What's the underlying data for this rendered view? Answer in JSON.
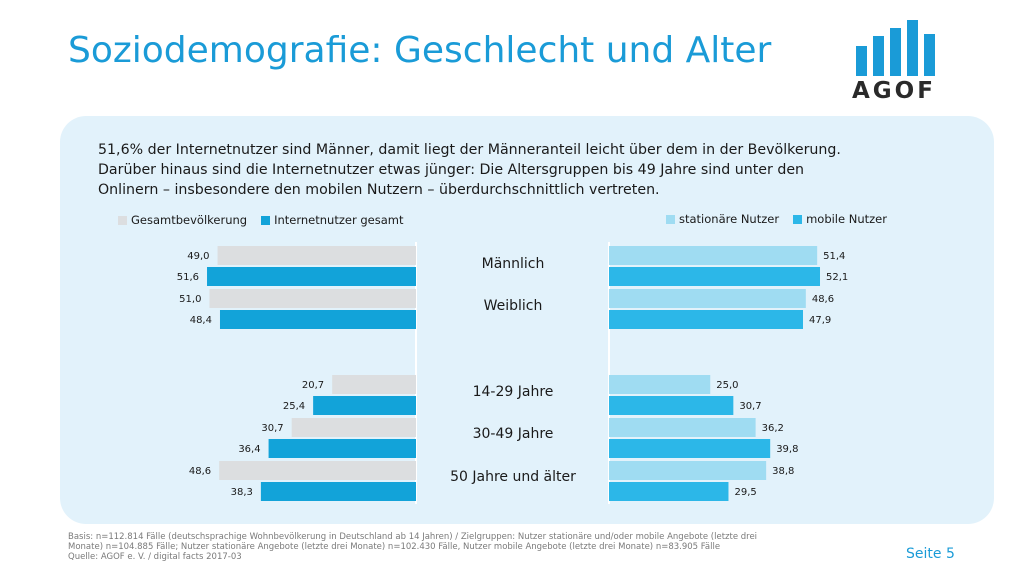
{
  "title": "Soziodemografie: Geschlecht und Alter",
  "logo": {
    "text": "AGOF",
    "color": "#1a9bd7"
  },
  "intro": [
    "51,6% der Internetnutzer sind Männer, damit liegt der Männeranteil leicht über dem in der Bevölkerung.",
    "Darüber hinaus sind die Internetnutzer etwas jünger: Die Altersgruppen bis 49 Jahre sind unter den",
    "Onlinern – insbesondere den mobilen Nutzern – überdurchschnittlich vertreten."
  ],
  "colors": {
    "gesamtbevoelkerung": "#dcdee0",
    "internetnutzer": "#12a3d9",
    "stationaer": "#9fdcf2",
    "mobil": "#2cb7e8",
    "panel": "#e2f2fb"
  },
  "chart_data": {
    "type": "bar",
    "orientation": "horizontal",
    "categories": [
      "Männlich",
      "Weiblich",
      "14-29 Jahre",
      "30-49 Jahre",
      "50 Jahre und älter"
    ],
    "left": {
      "series": [
        {
          "name": "Gesamtbevölkerung",
          "values": [
            49.0,
            51.0,
            20.7,
            30.7,
            48.6
          ],
          "labels": [
            "49,0",
            "51,0",
            "20,7",
            "30,7",
            "48,6"
          ]
        },
        {
          "name": "Internetnutzer gesamt",
          "values": [
            51.6,
            48.4,
            25.4,
            36.4,
            38.3
          ],
          "labels": [
            "51,6",
            "48,4",
            "25,4",
            "36,4",
            "38,3"
          ]
        }
      ]
    },
    "right": {
      "series": [
        {
          "name": "stationäre Nutzer",
          "values": [
            51.4,
            48.6,
            25.0,
            36.2,
            38.8
          ],
          "labels": [
            "51,4",
            "48,6",
            "25,0",
            "36,2",
            "38,8"
          ]
        },
        {
          "name": "mobile Nutzer",
          "values": [
            52.1,
            47.9,
            30.7,
            39.8,
            29.5
          ],
          "labels": [
            "52,1",
            "47,9",
            "30,7",
            "39,8",
            "29,5"
          ]
        }
      ]
    }
  },
  "footer": [
    "Basis: n=112.814 Fälle (deutschsprachige Wohnbevölkerung in Deutschland ab 14 Jahren) / Zielgruppen: Nutzer stationäre und/oder mobile Angebote (letzte drei",
    "Monate) n=104.885 Fälle; Nutzer stationäre Angebote (letzte drei Monate) n=102.430 Fälle, Nutzer mobile Angebote (letzte drei Monate) n=83.905 Fälle",
    "Quelle: AGOF e. V. / digital facts 2017-03"
  ],
  "page": "Seite 5"
}
